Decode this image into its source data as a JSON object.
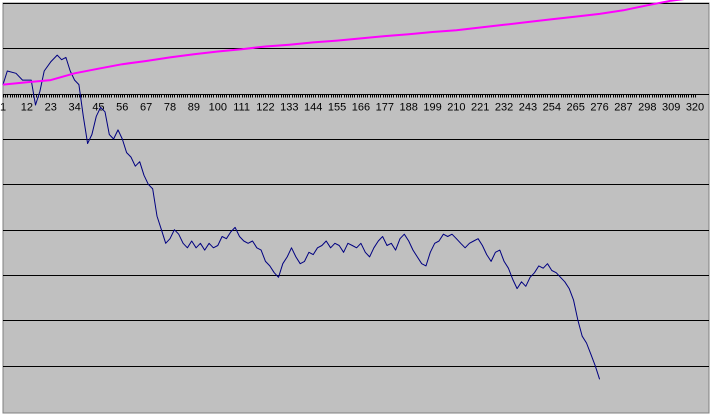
{
  "chart_data": {
    "type": "line",
    "title": "",
    "xlabel": "",
    "ylabel": "",
    "x_tick_labels": [
      "1",
      "12",
      "23",
      "34",
      "45",
      "56",
      "67",
      "78",
      "89",
      "100",
      "111",
      "122",
      "133",
      "144",
      "155",
      "166",
      "177",
      "188",
      "199",
      "210",
      "221",
      "232",
      "243",
      "254",
      "265",
      "276",
      "287",
      "298",
      "309",
      "320"
    ],
    "xlim": [
      1,
      320
    ],
    "ylim": [
      -7,
      2
    ],
    "grid": true,
    "legend": "none",
    "colors": {
      "plot_background": "#c0c0c0",
      "gridline": "#000000",
      "axis": "#000000"
    },
    "series": [
      {
        "color": "#000080",
        "points": [
          [
            1,
            0.2
          ],
          [
            3,
            0.5
          ],
          [
            7,
            0.45
          ],
          [
            10,
            0.3
          ],
          [
            14,
            0.3
          ],
          [
            16,
            -0.25
          ],
          [
            18,
            0.05
          ],
          [
            20,
            0.5
          ],
          [
            23,
            0.7
          ],
          [
            26,
            0.85
          ],
          [
            28,
            0.75
          ],
          [
            30,
            0.8
          ],
          [
            32,
            0.5
          ],
          [
            34,
            0.3
          ],
          [
            36,
            0.2
          ],
          [
            38,
            -0.5
          ],
          [
            40,
            -1.1
          ],
          [
            42,
            -0.9
          ],
          [
            44,
            -0.5
          ],
          [
            46,
            -0.3
          ],
          [
            48,
            -0.4
          ],
          [
            50,
            -0.9
          ],
          [
            52,
            -1.0
          ],
          [
            54,
            -0.8
          ],
          [
            56,
            -1.0
          ],
          [
            58,
            -1.3
          ],
          [
            60,
            -1.4
          ],
          [
            62,
            -1.6
          ],
          [
            64,
            -1.5
          ],
          [
            66,
            -1.8
          ],
          [
            68,
            -2.0
          ],
          [
            70,
            -2.1
          ],
          [
            72,
            -2.7
          ],
          [
            74,
            -3.0
          ],
          [
            76,
            -3.3
          ],
          [
            78,
            -3.2
          ],
          [
            80,
            -3.0
          ],
          [
            82,
            -3.1
          ],
          [
            84,
            -3.3
          ],
          [
            86,
            -3.4
          ],
          [
            88,
            -3.25
          ],
          [
            90,
            -3.4
          ],
          [
            92,
            -3.3
          ],
          [
            94,
            -3.45
          ],
          [
            96,
            -3.3
          ],
          [
            98,
            -3.4
          ],
          [
            100,
            -3.35
          ],
          [
            102,
            -3.15
          ],
          [
            104,
            -3.2
          ],
          [
            106,
            -3.05
          ],
          [
            108,
            -2.95
          ],
          [
            110,
            -3.15
          ],
          [
            112,
            -3.25
          ],
          [
            114,
            -3.3
          ],
          [
            116,
            -3.25
          ],
          [
            118,
            -3.4
          ],
          [
            120,
            -3.45
          ],
          [
            122,
            -3.7
          ],
          [
            124,
            -3.8
          ],
          [
            126,
            -3.95
          ],
          [
            128,
            -4.05
          ],
          [
            130,
            -3.75
          ],
          [
            132,
            -3.6
          ],
          [
            134,
            -3.4
          ],
          [
            136,
            -3.6
          ],
          [
            138,
            -3.75
          ],
          [
            140,
            -3.7
          ],
          [
            142,
            -3.5
          ],
          [
            144,
            -3.55
          ],
          [
            146,
            -3.4
          ],
          [
            148,
            -3.35
          ],
          [
            150,
            -3.25
          ],
          [
            152,
            -3.4
          ],
          [
            154,
            -3.3
          ],
          [
            156,
            -3.35
          ],
          [
            158,
            -3.5
          ],
          [
            160,
            -3.3
          ],
          [
            162,
            -3.35
          ],
          [
            164,
            -3.4
          ],
          [
            166,
            -3.3
          ],
          [
            168,
            -3.5
          ],
          [
            170,
            -3.6
          ],
          [
            172,
            -3.4
          ],
          [
            174,
            -3.25
          ],
          [
            176,
            -3.15
          ],
          [
            178,
            -3.35
          ],
          [
            180,
            -3.3
          ],
          [
            182,
            -3.45
          ],
          [
            184,
            -3.2
          ],
          [
            186,
            -3.1
          ],
          [
            188,
            -3.25
          ],
          [
            190,
            -3.45
          ],
          [
            192,
            -3.6
          ],
          [
            194,
            -3.75
          ],
          [
            196,
            -3.8
          ],
          [
            198,
            -3.5
          ],
          [
            200,
            -3.3
          ],
          [
            202,
            -3.25
          ],
          [
            204,
            -3.1
          ],
          [
            206,
            -3.15
          ],
          [
            208,
            -3.1
          ],
          [
            210,
            -3.2
          ],
          [
            212,
            -3.3
          ],
          [
            214,
            -3.4
          ],
          [
            216,
            -3.3
          ],
          [
            218,
            -3.25
          ],
          [
            220,
            -3.2
          ],
          [
            222,
            -3.35
          ],
          [
            224,
            -3.55
          ],
          [
            226,
            -3.7
          ],
          [
            228,
            -3.5
          ],
          [
            230,
            -3.45
          ],
          [
            232,
            -3.7
          ],
          [
            234,
            -3.85
          ],
          [
            236,
            -4.1
          ],
          [
            238,
            -4.3
          ],
          [
            240,
            -4.15
          ],
          [
            242,
            -4.25
          ],
          [
            244,
            -4.05
          ],
          [
            246,
            -3.95
          ],
          [
            248,
            -3.8
          ],
          [
            250,
            -3.85
          ],
          [
            252,
            -3.75
          ],
          [
            254,
            -3.9
          ],
          [
            256,
            -3.95
          ],
          [
            258,
            -4.05
          ],
          [
            260,
            -4.15
          ],
          [
            262,
            -4.3
          ],
          [
            264,
            -4.55
          ],
          [
            266,
            -5.0
          ],
          [
            268,
            -5.35
          ],
          [
            270,
            -5.5
          ],
          [
            272,
            -5.75
          ],
          [
            274,
            -6.0
          ],
          [
            276,
            -6.3
          ]
        ]
      },
      {
        "color": "#ff00ff",
        "points": [
          [
            1,
            0.2
          ],
          [
            12,
            0.25
          ],
          [
            23,
            0.3
          ],
          [
            34,
            0.45
          ],
          [
            45,
            0.55
          ],
          [
            56,
            0.65
          ],
          [
            67,
            0.72
          ],
          [
            78,
            0.8
          ],
          [
            89,
            0.87
          ],
          [
            100,
            0.93
          ],
          [
            111,
            0.98
          ],
          [
            122,
            1.04
          ],
          [
            133,
            1.08
          ],
          [
            144,
            1.13
          ],
          [
            155,
            1.17
          ],
          [
            166,
            1.22
          ],
          [
            177,
            1.27
          ],
          [
            188,
            1.31
          ],
          [
            199,
            1.36
          ],
          [
            210,
            1.4
          ],
          [
            221,
            1.46
          ],
          [
            232,
            1.52
          ],
          [
            243,
            1.58
          ],
          [
            254,
            1.64
          ],
          [
            265,
            1.7
          ],
          [
            276,
            1.76
          ],
          [
            287,
            1.84
          ],
          [
            298,
            1.95
          ],
          [
            309,
            2.05
          ],
          [
            320,
            2.12
          ]
        ]
      }
    ]
  }
}
